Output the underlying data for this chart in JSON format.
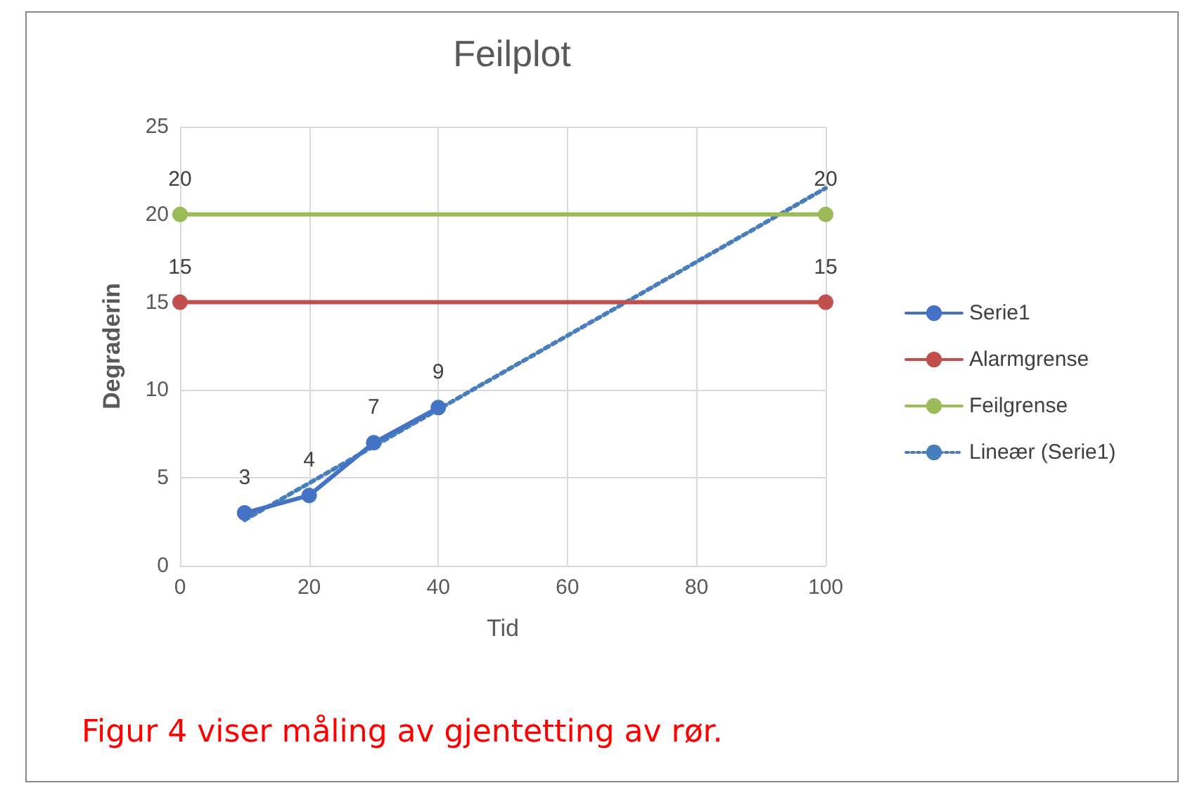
{
  "chart_data": {
    "type": "line",
    "title": "Feilplot",
    "xlabel": "Tid",
    "ylabel": "Degraderin",
    "xlim": [
      0,
      100
    ],
    "xticks": [
      0,
      20,
      40,
      60,
      80,
      100
    ],
    "ylim": [
      0,
      25
    ],
    "yticks": [
      0,
      5,
      10,
      15,
      20,
      25
    ],
    "grid": true,
    "legend": "right",
    "marker": "circle",
    "series": [
      {
        "name": "Serie1",
        "color": "#4472c4",
        "x": [
          10,
          20,
          30,
          40
        ],
        "values": [
          3,
          4,
          7,
          9
        ],
        "value_labels": [
          "3",
          "4",
          "7",
          "9"
        ]
      },
      {
        "name": "Alarmgrense",
        "color": "#c0504d",
        "x": [
          0,
          100
        ],
        "values": [
          15,
          15
        ],
        "value_labels": [
          "15",
          "15"
        ]
      },
      {
        "name": "Feilgrense",
        "color": "#9bbb59",
        "x": [
          0,
          100
        ],
        "values": [
          20,
          20
        ],
        "value_labels": [
          "20",
          "20"
        ]
      },
      {
        "name": "Lineær (Serie1)",
        "color": "#4a7ebb",
        "x": [
          10,
          100
        ],
        "values": [
          2.6,
          21.5
        ],
        "line_style": "dotted",
        "marker": "none"
      }
    ],
    "annotations": [
      "Figur 4 viser måling av gjentetting av rør."
    ]
  }
}
